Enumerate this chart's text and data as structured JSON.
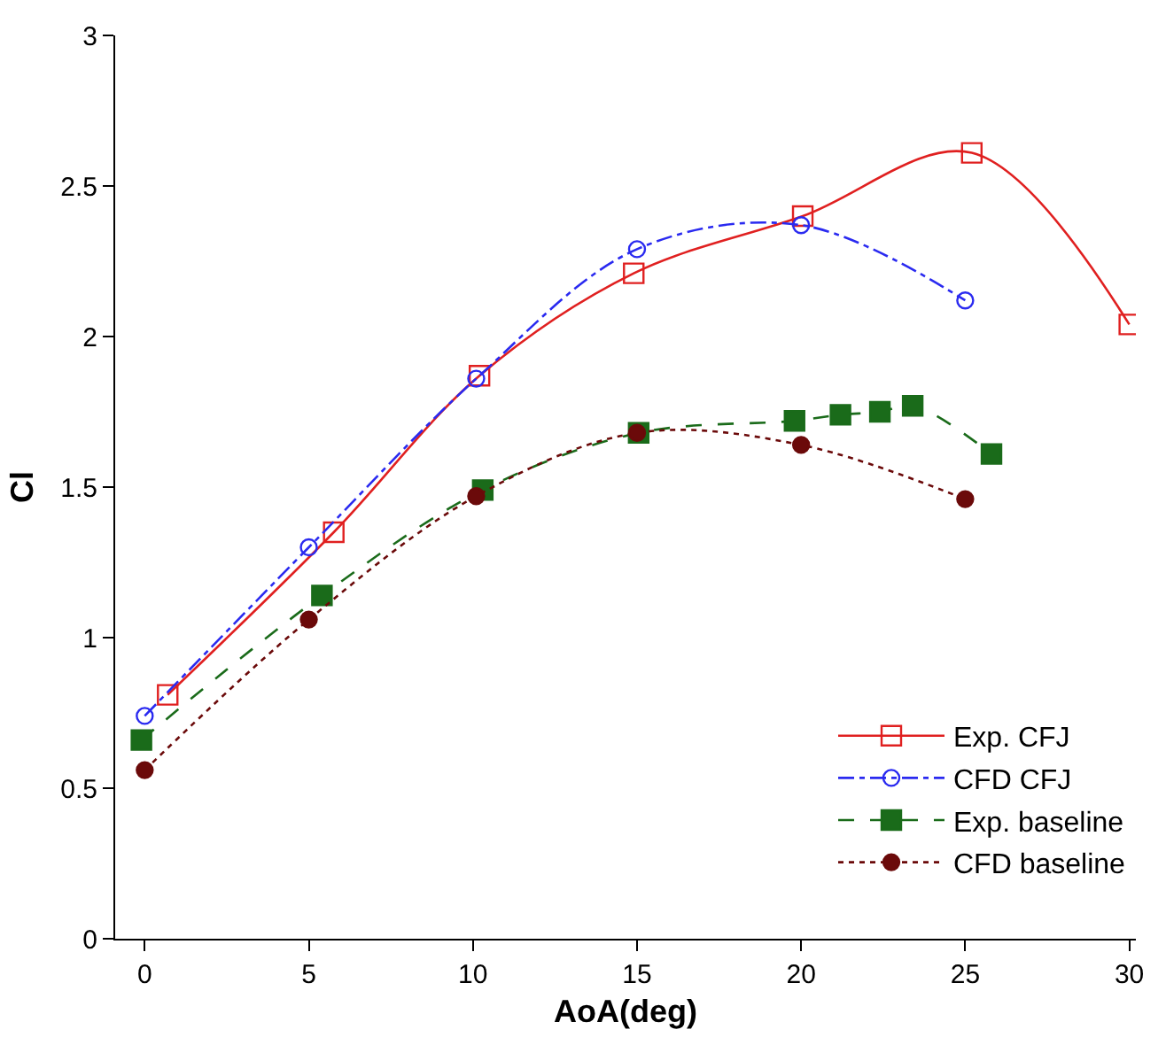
{
  "chart_data": {
    "type": "line",
    "xlabel": "AoA(deg)",
    "ylabel": "Cl",
    "xlim": [
      -0.9,
      30.2
    ],
    "ylim": [
      0,
      3
    ],
    "xticks": [
      0,
      5,
      10,
      15,
      20,
      25,
      30
    ],
    "yticks": [
      0,
      0.5,
      1,
      1.5,
      2,
      2.5,
      3
    ],
    "legend": "bottom right",
    "series": [
      {
        "name": "Exp. CFJ",
        "color": "#e02020",
        "marker": "square",
        "line_style": "solid",
        "x": [
          0.7,
          5.76,
          10.2,
          14.9,
          20.05,
          25.2,
          30
        ],
        "values": [
          0.81,
          1.35,
          1.87,
          2.21,
          2.4,
          2.61,
          2.04
        ]
      },
      {
        "name": "CFD CFJ",
        "color": "#2a2af0",
        "marker": "circle",
        "line_style": "dashdot",
        "x": [
          0,
          5,
          10.1,
          15,
          20,
          25
        ],
        "values": [
          0.74,
          1.3,
          1.86,
          2.29,
          2.37,
          2.12
        ]
      },
      {
        "name": "Exp. baseline",
        "color": "#1a6b1a",
        "marker": "square",
        "line_style": "dashed",
        "x": [
          -0.1,
          5.4,
          10.3,
          15.05,
          19.8,
          21.2,
          22.4,
          23.4,
          25.8
        ],
        "values": [
          0.66,
          1.14,
          1.49,
          1.68,
          1.72,
          1.74,
          1.75,
          1.77,
          1.61
        ]
      },
      {
        "name": "CFD baseline",
        "color": "#6b0a0a",
        "marker": "circle",
        "line_style": "dotted",
        "x": [
          0,
          5,
          10.1,
          15,
          20,
          25
        ],
        "values": [
          0.56,
          1.06,
          1.47,
          1.68,
          1.64,
          1.46
        ]
      }
    ]
  }
}
